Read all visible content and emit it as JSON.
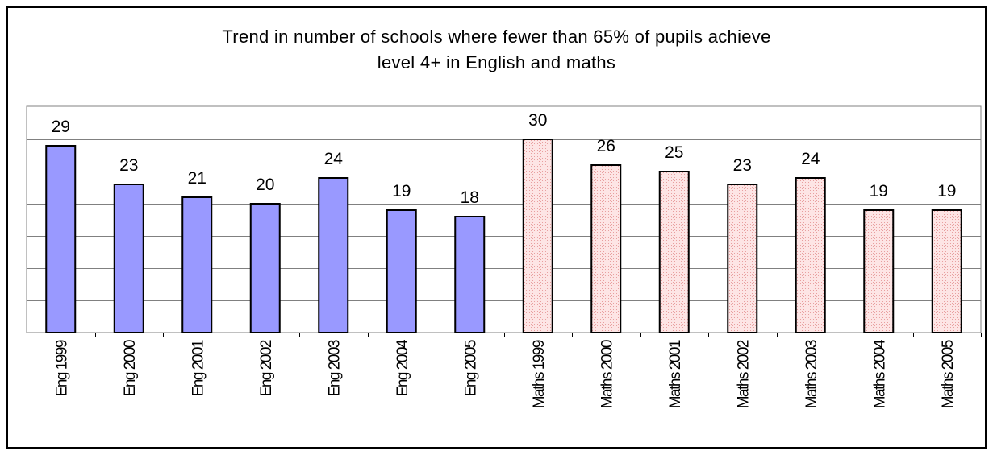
{
  "chart_data": {
    "type": "bar",
    "title_lines": [
      "Trend in number of schools where fewer than 65% of pupils achieve",
      "level 4+ in English and maths"
    ],
    "categories": [
      "Eng 1999",
      "Eng 2000",
      "Eng 2001",
      "Eng 2002",
      "Eng 2003",
      "Eng 2004",
      "Eng 2005",
      "Maths 1999",
      "Maths 2000",
      "Maths 2001",
      "Maths 2002",
      "Maths 2003",
      "Maths 2004",
      "Maths 2005"
    ],
    "values": [
      29,
      23,
      21,
      20,
      24,
      19,
      18,
      30,
      26,
      25,
      23,
      24,
      19,
      19
    ],
    "xlabel": "",
    "ylabel": "",
    "ylim": [
      0,
      30
    ],
    "y_gridlines": [
      5,
      10,
      15,
      20,
      25,
      30
    ],
    "grid": true,
    "legend": "none",
    "data_labels": true,
    "colors": {
      "english_fill": "#9999ff",
      "maths_fill": "#fde5e5",
      "maths_pattern": "#e8a0a0",
      "bar_outline": "#000000",
      "grid": "#808080"
    }
  }
}
